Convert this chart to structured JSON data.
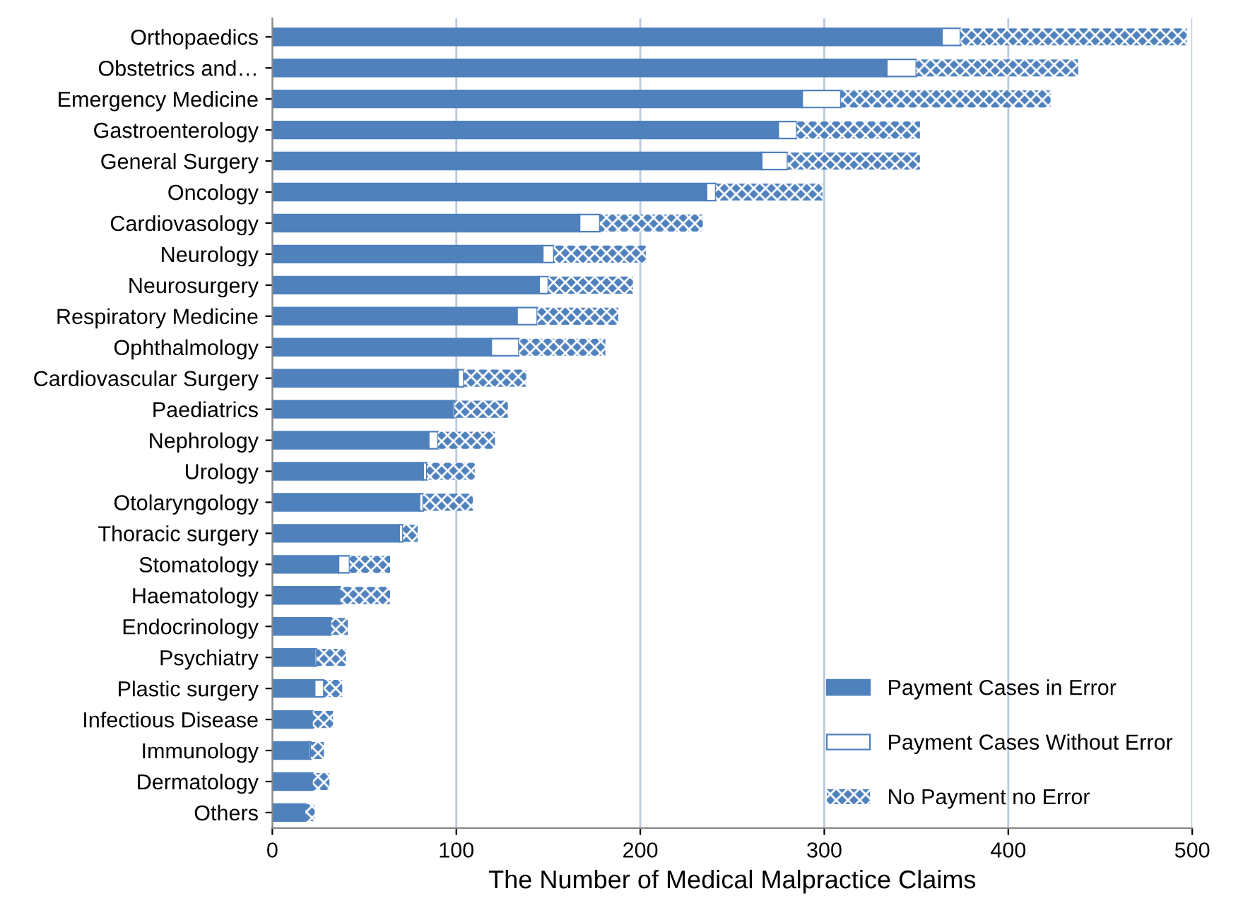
{
  "chart_data": {
    "type": "bar",
    "orientation": "horizontal",
    "stacked": true,
    "xlabel": "The Number of Medical Malpractice Claims",
    "categories": [
      "Orthopaedics",
      "Obstetrics and…",
      "Emergency Medicine",
      "Gastroenterology",
      "General Surgery",
      "Oncology",
      "Cardiovasology",
      "Neurology",
      "Neurosurgery",
      "Respiratory Medicine",
      "Ophthalmology",
      "Cardiovascular Surgery",
      "Paediatrics",
      "Nephrology",
      "Urology",
      "Otolaryngology",
      "Thoracic surgery",
      "Stomatology",
      "Haematology",
      "Endocrinology",
      "Psychiatry",
      "Plastic surgery",
      "Infectious Disease",
      "Immunology",
      "Dermatology",
      "Others"
    ],
    "series": [
      {
        "name": "Payment Cases in Error",
        "color": "#4f81bd",
        "values": [
          364,
          334,
          288,
          275,
          266,
          236,
          167,
          147,
          145,
          133,
          119,
          101,
          98,
          85,
          82,
          80,
          69,
          36,
          37,
          32,
          23,
          23,
          22,
          20,
          22,
          18
        ]
      },
      {
        "name": "Payment Cases Without Error",
        "color": "#ffffff",
        "values": [
          10,
          16,
          21,
          10,
          14,
          5,
          11,
          6,
          5,
          11,
          15,
          3,
          1,
          5,
          2,
          2,
          2,
          6,
          0,
          0,
          1,
          5,
          0,
          1,
          0,
          0
        ]
      },
      {
        "name": "No Payment no Error",
        "color": "#4f81bd",
        "values": [
          123,
          88,
          114,
          67,
          72,
          58,
          56,
          50,
          46,
          44,
          47,
          34,
          29,
          31,
          26,
          27,
          8,
          22,
          27,
          9,
          16,
          10,
          11,
          7,
          9,
          5
        ]
      }
    ],
    "xlim": [
      0,
      500
    ],
    "xticks": [
      0,
      100,
      200,
      300,
      400,
      500
    ],
    "grid": "x",
    "legend": "bottom right"
  }
}
